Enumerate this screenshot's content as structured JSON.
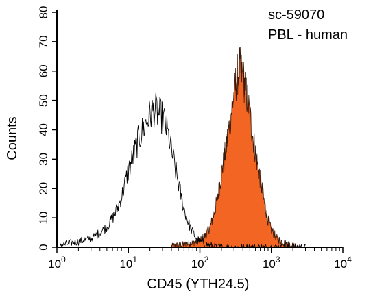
{
  "chart_data": {
    "type": "area",
    "xlabel": "CD45 (YTH24.5)",
    "ylabel": "Counts",
    "xscale": "log",
    "xlim": [
      1,
      10000
    ],
    "ylim": [
      0,
      80
    ],
    "x_ticks": [
      {
        "value": 1,
        "base": "10",
        "exp": "0"
      },
      {
        "value": 10,
        "base": "10",
        "exp": "1"
      },
      {
        "value": 100,
        "base": "10",
        "exp": "2"
      },
      {
        "value": 1000,
        "base": "10",
        "exp": "3"
      },
      {
        "value": 10000,
        "base": "10",
        "exp": "4"
      }
    ],
    "y_ticks": [
      "0",
      "10",
      "20",
      "30",
      "40",
      "50",
      "60",
      "70",
      "80"
    ],
    "annotations": [
      "sc-59070",
      "PBL - human"
    ],
    "colors": {
      "filled": "#f26522",
      "outline": "#000000"
    },
    "series": [
      {
        "style": "outline",
        "points": [
          [
            1.1,
            1
          ],
          [
            1.3,
            1
          ],
          [
            1.6,
            1.5
          ],
          [
            2,
            2
          ],
          [
            2.5,
            2.5
          ],
          [
            3,
            3
          ],
          [
            3.5,
            4
          ],
          [
            4,
            5
          ],
          [
            5,
            7
          ],
          [
            6,
            10
          ],
          [
            7,
            13
          ],
          [
            8,
            17
          ],
          [
            9,
            22
          ],
          [
            10,
            26
          ],
          [
            12,
            32
          ],
          [
            14,
            37
          ],
          [
            16,
            40
          ],
          [
            18,
            43
          ],
          [
            20,
            45
          ],
          [
            23,
            47
          ],
          [
            25,
            46
          ],
          [
            28,
            45
          ],
          [
            32,
            43
          ],
          [
            36,
            38
          ],
          [
            40,
            33
          ],
          [
            45,
            27
          ],
          [
            50,
            22
          ],
          [
            55,
            17
          ],
          [
            60,
            13
          ],
          [
            70,
            8
          ],
          [
            80,
            5
          ],
          [
            90,
            3
          ],
          [
            100,
            2
          ],
          [
            120,
            1
          ],
          [
            150,
            0.5
          ],
          [
            200,
            0
          ],
          [
            500,
            0
          ],
          [
            1000,
            0
          ],
          [
            3000,
            0
          ]
        ]
      },
      {
        "style": "filled",
        "points": [
          [
            40,
            0.3
          ],
          [
            60,
            1
          ],
          [
            80,
            1.5
          ],
          [
            100,
            2.5
          ],
          [
            120,
            4
          ],
          [
            140,
            7
          ],
          [
            160,
            12
          ],
          [
            180,
            18
          ],
          [
            200,
            25
          ],
          [
            230,
            33
          ],
          [
            260,
            42
          ],
          [
            300,
            52
          ],
          [
            330,
            58
          ],
          [
            360,
            61
          ],
          [
            400,
            58
          ],
          [
            450,
            52
          ],
          [
            500,
            45
          ],
          [
            550,
            38
          ],
          [
            600,
            32
          ],
          [
            700,
            23
          ],
          [
            800,
            15
          ],
          [
            900,
            9
          ],
          [
            1000,
            6
          ],
          [
            1200,
            3
          ],
          [
            1500,
            1.5
          ],
          [
            2000,
            0.5
          ],
          [
            2500,
            0
          ]
        ]
      }
    ]
  }
}
